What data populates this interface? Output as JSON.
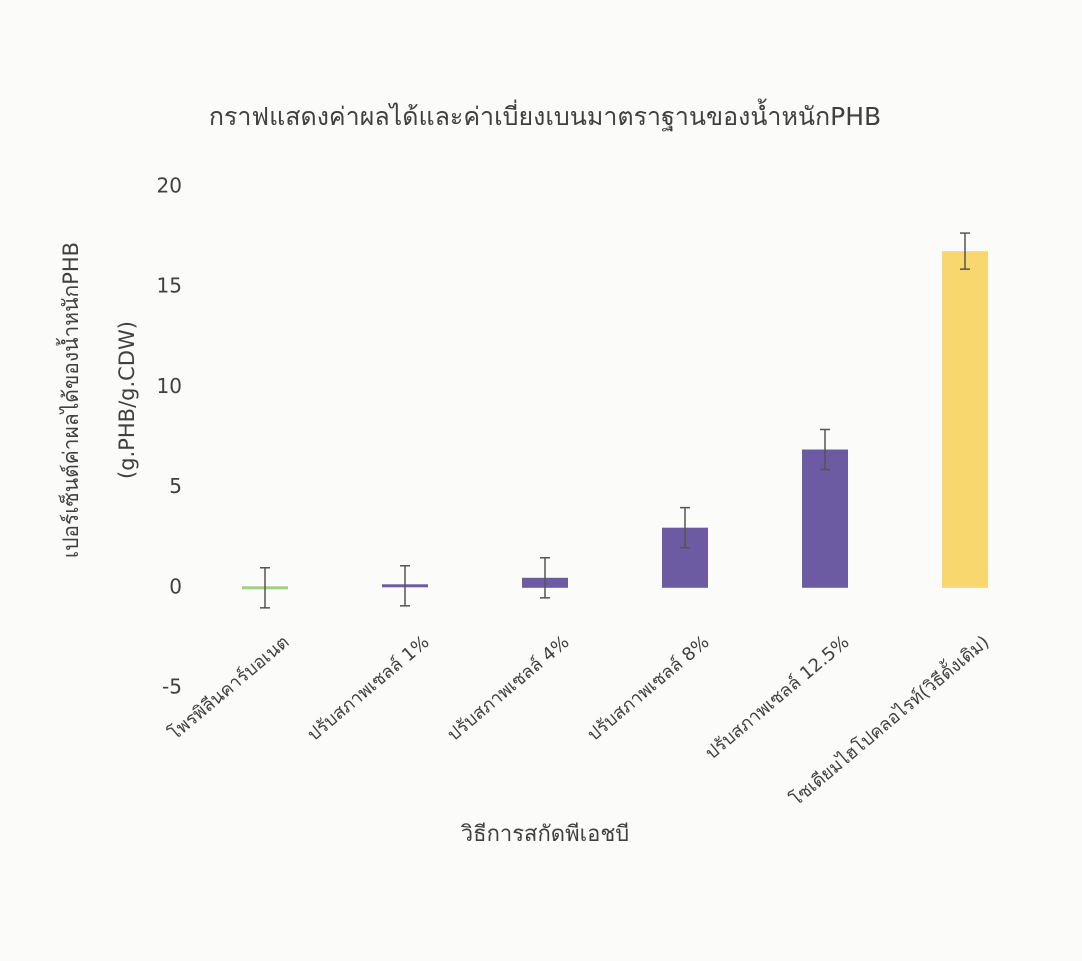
{
  "chart_data": {
    "type": "bar",
    "title": "กราฟแสดงค่าผลได้และค่าเบี่ยงเบนมาตราฐานของน้ำหนักPHB",
    "y_label": [
      "เปอร์เซ็นต์ค่าผลได้ของน้ำหนักPHB",
      "(g.PHB/g.CDW)"
    ],
    "x_label": "วิธีการสกัดพีเอชบี",
    "categories": [
      "โพรพิลีนคาร์บอเนต",
      "ปรับสภาพเซลล์ 1%",
      "ปรับสภาพเซลล์ 4%",
      "ปรับสภาพเซลล์ 8%",
      "ปรับสภาพเซลล์ 12.5%",
      "โซเดียมไฮโปคลอไรท์(วิธีดั้งเดิม)"
    ],
    "values": [
      0,
      0.1,
      0.5,
      3,
      6.9,
      16.8
    ],
    "errors": [
      1,
      1,
      1,
      1,
      1,
      0.9
    ],
    "colors": [
      "#9ed27a",
      "#6c5ba3",
      "#6c5ba3",
      "#6c5ba3",
      "#6c5ba3",
      "#f7d76e"
    ],
    "ylim": [
      -5,
      20
    ],
    "yticks": [
      -5,
      0,
      5,
      10,
      15,
      20
    ],
    "grid": false
  }
}
